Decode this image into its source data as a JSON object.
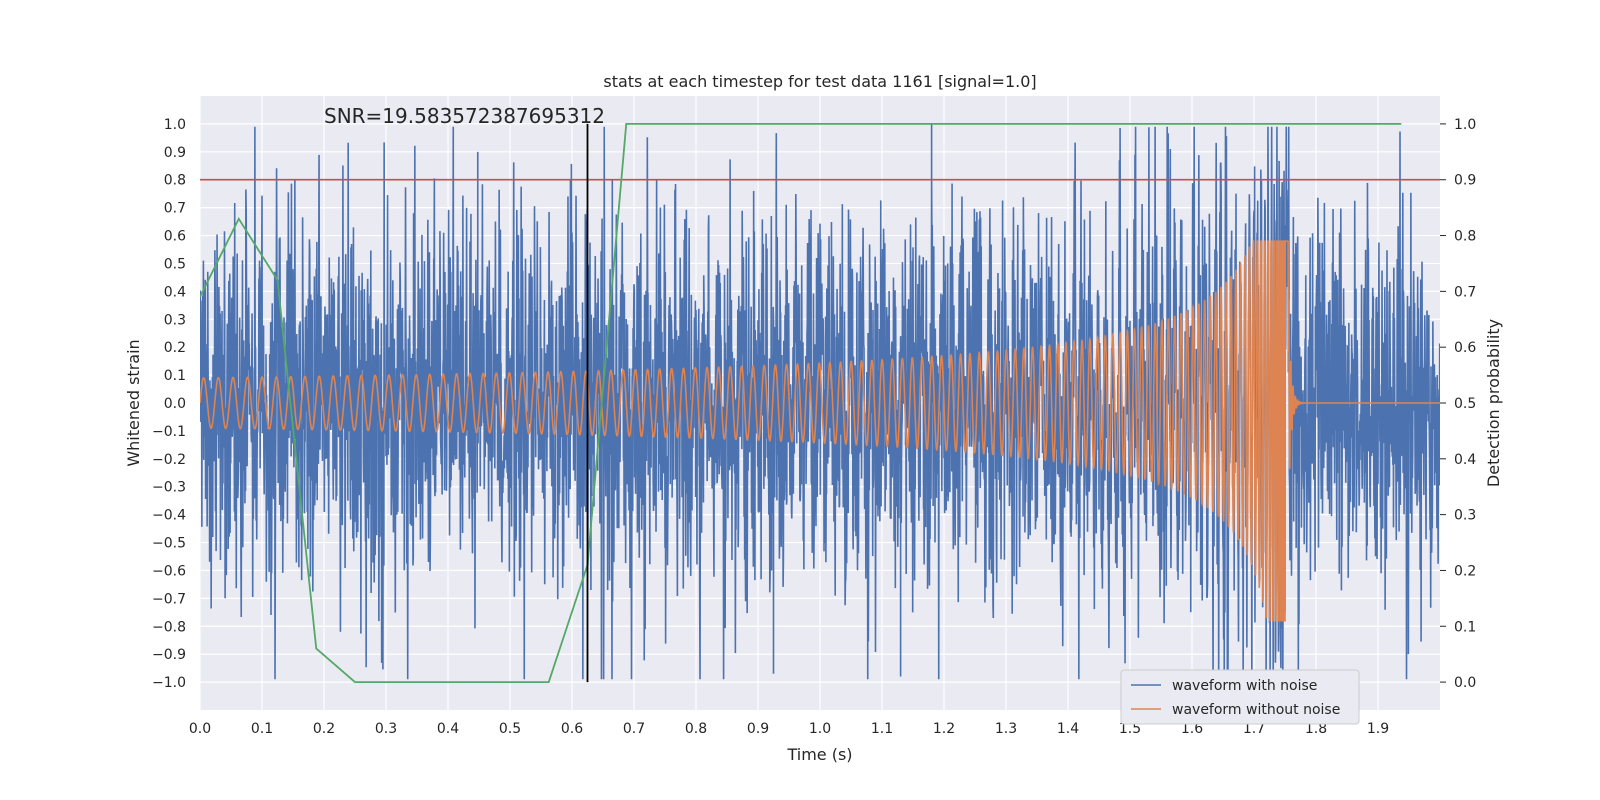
{
  "chart_data": {
    "type": "line",
    "title": "stats at each timestep for test data 1161 [signal=1.0]",
    "xlabel": "Time (s)",
    "ylabel": "Whitened strain",
    "ylabel_right": "Detection probability",
    "xlim": [
      0.0,
      2.0
    ],
    "ylim": [
      -1.1,
      1.1
    ],
    "ylim_right": [
      -0.05,
      1.05
    ],
    "xticks": [
      "0.0",
      "0.1",
      "0.2",
      "0.3",
      "0.4",
      "0.5",
      "0.6",
      "0.7",
      "0.8",
      "0.9",
      "1.0",
      "1.1",
      "1.2",
      "1.3",
      "1.4",
      "1.5",
      "1.6",
      "1.7",
      "1.8",
      "1.9"
    ],
    "yticks": [
      "1.0",
      "0.9",
      "0.8",
      "0.7",
      "0.6",
      "0.5",
      "0.4",
      "0.3",
      "0.2",
      "0.1",
      "0.0",
      "−0.1",
      "−0.2",
      "−0.3",
      "−0.4",
      "−0.5",
      "−0.6",
      "−0.7",
      "−0.8",
      "−0.9",
      "−1.0"
    ],
    "yticks_right": [
      "1.0",
      "0.9",
      "0.8",
      "0.7",
      "0.6",
      "0.5",
      "0.4",
      "0.3",
      "0.2",
      "0.1",
      "0.0"
    ],
    "annotation": "SNR=19.583572387695312",
    "annotation_pos": {
      "x": 0.2,
      "y": 1.0
    },
    "threshold": {
      "axis": "right",
      "value": 0.9,
      "color": "#c44e52"
    },
    "marker_line": {
      "x": 0.625,
      "y_from": -1.0,
      "y_to": 1.0,
      "color": "#000000"
    },
    "series": [
      {
        "name": "waveform with noise",
        "color": "#4c72b0",
        "axis": "left",
        "description": "noisy whitened strain, approx. amplitude 0.35 with spikes to ~±1.0",
        "duration": 2.0,
        "sample_rate": 2048,
        "amplitude": 0.36,
        "notable_peaks": [
          [
            0.448,
            0.9
          ],
          [
            0.925,
            -0.97
          ],
          [
            1.13,
            -0.98
          ],
          [
            1.18,
            1.0
          ],
          [
            1.565,
            0.91
          ],
          [
            1.745,
            -0.81
          ]
        ]
      },
      {
        "name": "waveform without noise",
        "color": "#dd8452",
        "axis": "left",
        "description": "chirp signal, frequency rising from ~40 Hz, amplitude rising to ~0.6 at merger near t=1.75 s then ringdown",
        "f0": 42,
        "t_merge": 1.755,
        "amp0": 0.09,
        "amp_peak": 0.58
      },
      {
        "name": "detection probability",
        "color": "#55a868",
        "axis": "right",
        "x": [
          0.0,
          0.0625,
          0.125,
          0.1875,
          0.25,
          0.3125,
          0.375,
          0.4375,
          0.5,
          0.5625,
          0.625,
          0.6875,
          0.75,
          1.0,
          1.5,
          1.9375
        ],
        "y": [
          0.69,
          0.83,
          0.72,
          0.06,
          0.0,
          0.0,
          0.0,
          0.0,
          0.0,
          0.0,
          0.21,
          1.0,
          1.0,
          1.0,
          1.0,
          1.0
        ]
      }
    ],
    "legend": [
      "waveform with noise",
      "waveform without noise"
    ],
    "legend_position": "bottom-right",
    "grid": true
  }
}
